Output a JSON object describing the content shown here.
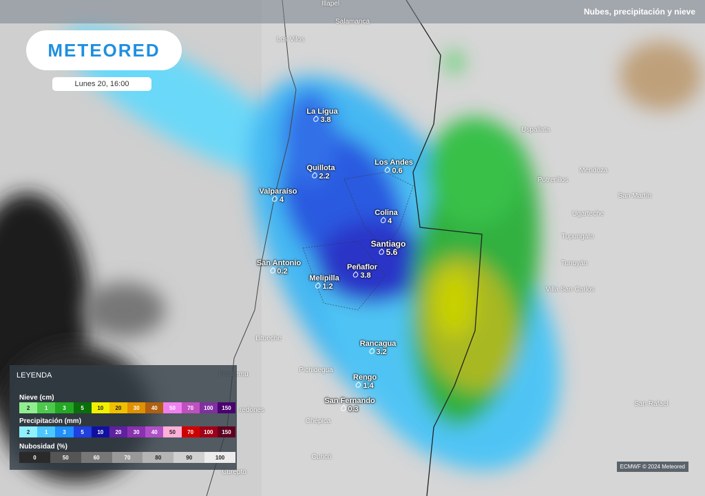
{
  "header": {
    "layer_title": "Nubes, precipitación y nieve",
    "logo": "METEORED",
    "date": "Lunes 20, 16:00"
  },
  "cities": [
    {
      "name": "La Ligua",
      "value": 3.8
    },
    {
      "name": "Los Andes",
      "value": 0.6
    },
    {
      "name": "Quillota",
      "value": 2.2
    },
    {
      "name": "Valparaíso",
      "value": 4
    },
    {
      "name": "Colina",
      "value": 4
    },
    {
      "name": "Santiago",
      "value": 5.6
    },
    {
      "name": "San Antonio",
      "value": 0.2
    },
    {
      "name": "Peñaflor",
      "value": 3.8
    },
    {
      "name": "Melipilla",
      "value": 1.2
    },
    {
      "name": "Rancagua",
      "value": 3.2
    },
    {
      "name": "Rengo",
      "value": 1.4
    },
    {
      "name": "San Fernando",
      "value": 0.3
    }
  ],
  "places": [
    "Illapel",
    "Salamanca",
    "Los Vilos",
    "Uspallata",
    "Mendoza",
    "Potrerillos",
    "San Martín",
    "Ugarteche",
    "Tupungato",
    "Tunuyán",
    "Villa San Carlos",
    "San Rafael",
    "Litueche",
    "Pichilemu",
    "Pichidegua",
    "Chépica",
    "Curicó",
    "Curepto",
    "redones"
  ],
  "legend": {
    "title": "LEYENDA",
    "snow": {
      "label": "Nieve (cm)",
      "steps": [
        "2",
        "1",
        "3",
        "5",
        "10",
        "20",
        "30",
        "40",
        "50",
        "70",
        "100",
        "150"
      ]
    },
    "precipitation": {
      "label": "Precipitación (mm)",
      "steps": [
        "2",
        "1",
        "3",
        "5",
        "10",
        "20",
        "30",
        "40",
        "50",
        "70",
        "100",
        "150"
      ]
    },
    "clouds": {
      "label": "Nubosidad (%)",
      "steps": [
        "0",
        "50",
        "60",
        "70",
        "80",
        "90",
        "100"
      ]
    }
  },
  "credit": "ECMWF © 2024 Meteored"
}
